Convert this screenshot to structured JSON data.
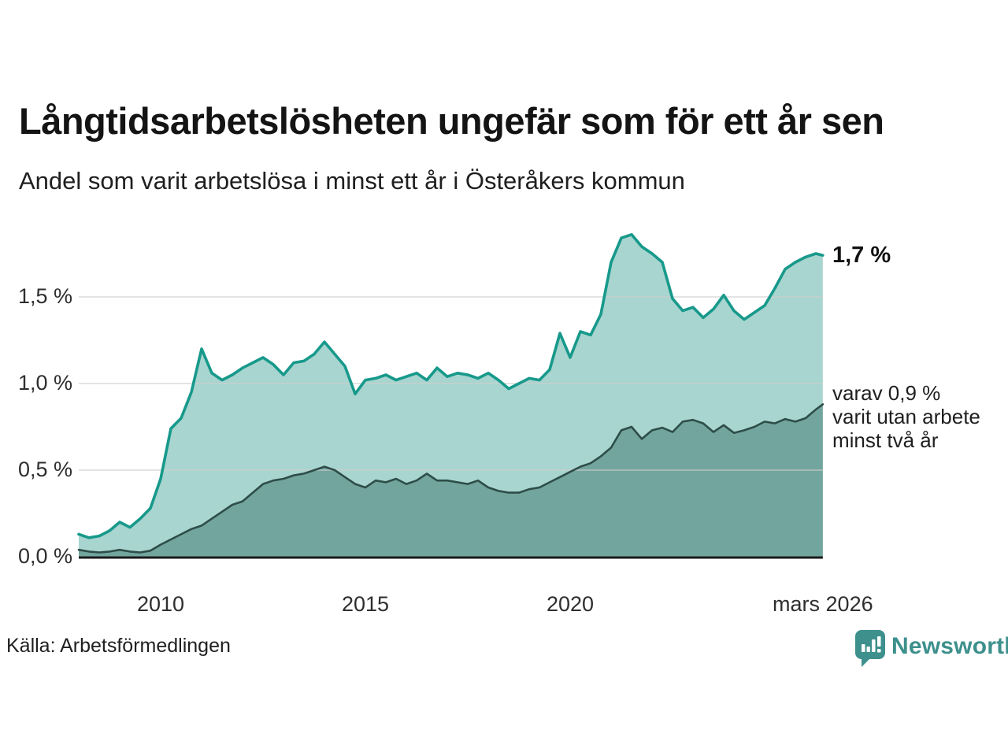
{
  "header": {
    "title": "Långtidsarbetslösheten ungefär som för ett år sen",
    "subtitle": "Andel som varit arbetslösa i minst ett år i Österåkers kommun"
  },
  "colors": {
    "series1_line": "#17998b",
    "series1_fill": "#a8d5cf",
    "series2_line": "#2e4d49",
    "series2_fill": "#72a59d",
    "gridline": "#cfcfcf",
    "baseline": "#1a1a1a",
    "brand_teal": "#3d908c"
  },
  "chart_data": {
    "type": "area",
    "title": "Långtidsarbetslösheten ungefär som för ett år sen",
    "subtitle": "Andel som varit arbetslösa i minst ett år i Österåkers kommun",
    "x_range": [
      2008.0,
      2026.17
    ],
    "y_range": [
      0,
      1.9
    ],
    "grid": true,
    "x_ticks": [
      {
        "year": 2010,
        "label": "2010"
      },
      {
        "year": 2015,
        "label": "2015"
      },
      {
        "year": 2020,
        "label": "2020"
      },
      {
        "year": 2026.17,
        "label": "mars 2026"
      }
    ],
    "y_ticks": [
      {
        "value": 0.0,
        "label": "0,0 %"
      },
      {
        "value": 0.5,
        "label": "0,5 %"
      },
      {
        "value": 1.0,
        "label": "1,0 %"
      },
      {
        "value": 1.5,
        "label": "1,5 %"
      }
    ],
    "x": [
      2008.0,
      2008.25,
      2008.5,
      2008.75,
      2009.0,
      2009.25,
      2009.5,
      2009.75,
      2010.0,
      2010.25,
      2010.5,
      2010.75,
      2011.0,
      2011.25,
      2011.5,
      2011.75,
      2012.0,
      2012.25,
      2012.5,
      2012.75,
      2013.0,
      2013.25,
      2013.5,
      2013.75,
      2014.0,
      2014.25,
      2014.5,
      2014.75,
      2015.0,
      2015.25,
      2015.5,
      2015.75,
      2016.0,
      2016.25,
      2016.5,
      2016.75,
      2017.0,
      2017.25,
      2017.5,
      2017.75,
      2018.0,
      2018.25,
      2018.5,
      2018.75,
      2019.0,
      2019.25,
      2019.5,
      2019.75,
      2020.0,
      2020.25,
      2020.5,
      2020.75,
      2021.0,
      2021.25,
      2021.5,
      2021.75,
      2022.0,
      2022.25,
      2022.5,
      2022.75,
      2023.0,
      2023.25,
      2023.5,
      2023.75,
      2024.0,
      2024.25,
      2024.5,
      2024.75,
      2025.0,
      2025.25,
      2025.5,
      2025.75,
      2026.0,
      2026.17
    ],
    "series": [
      {
        "name": "Arbetslösa minst ett år",
        "end_label": "1,7 %",
        "values": [
          0.13,
          0.11,
          0.12,
          0.15,
          0.2,
          0.17,
          0.22,
          0.28,
          0.45,
          0.74,
          0.8,
          0.95,
          1.2,
          1.06,
          1.02,
          1.05,
          1.09,
          1.12,
          1.15,
          1.11,
          1.05,
          1.12,
          1.13,
          1.17,
          1.24,
          1.17,
          1.1,
          0.94,
          1.02,
          1.03,
          1.05,
          1.02,
          1.04,
          1.06,
          1.02,
          1.09,
          1.04,
          1.06,
          1.05,
          1.03,
          1.06,
          1.02,
          0.97,
          1.0,
          1.03,
          1.02,
          1.08,
          1.29,
          1.15,
          1.3,
          1.28,
          1.4,
          1.7,
          1.84,
          1.86,
          1.79,
          1.75,
          1.7,
          1.49,
          1.42,
          1.44,
          1.38,
          1.43,
          1.51,
          1.42,
          1.37,
          1.41,
          1.45,
          1.55,
          1.66,
          1.7,
          1.73,
          1.75,
          1.74
        ]
      },
      {
        "name": "Arbetslösa minst två år",
        "end_label": "varav 0,9 %",
        "values": [
          0.04,
          0.03,
          0.025,
          0.03,
          0.04,
          0.03,
          0.025,
          0.035,
          0.07,
          0.1,
          0.13,
          0.16,
          0.18,
          0.22,
          0.26,
          0.3,
          0.32,
          0.37,
          0.42,
          0.44,
          0.45,
          0.47,
          0.48,
          0.5,
          0.52,
          0.5,
          0.46,
          0.42,
          0.4,
          0.44,
          0.43,
          0.45,
          0.42,
          0.44,
          0.48,
          0.44,
          0.44,
          0.43,
          0.42,
          0.44,
          0.4,
          0.38,
          0.37,
          0.37,
          0.39,
          0.4,
          0.43,
          0.46,
          0.49,
          0.52,
          0.54,
          0.58,
          0.63,
          0.73,
          0.75,
          0.68,
          0.73,
          0.745,
          0.72,
          0.78,
          0.79,
          0.77,
          0.72,
          0.76,
          0.715,
          0.73,
          0.75,
          0.78,
          0.77,
          0.795,
          0.78,
          0.8,
          0.85,
          0.88
        ]
      }
    ],
    "annotations": {
      "last_value_label": "1,7 %",
      "secondary_lines": [
        "varav 0,9 %",
        "varit utan arbete",
        "minst två år"
      ]
    },
    "legend_position": "none"
  },
  "footer": {
    "source": "Källa: Arbetsförmedlingen",
    "brand": "Newsworthy"
  }
}
